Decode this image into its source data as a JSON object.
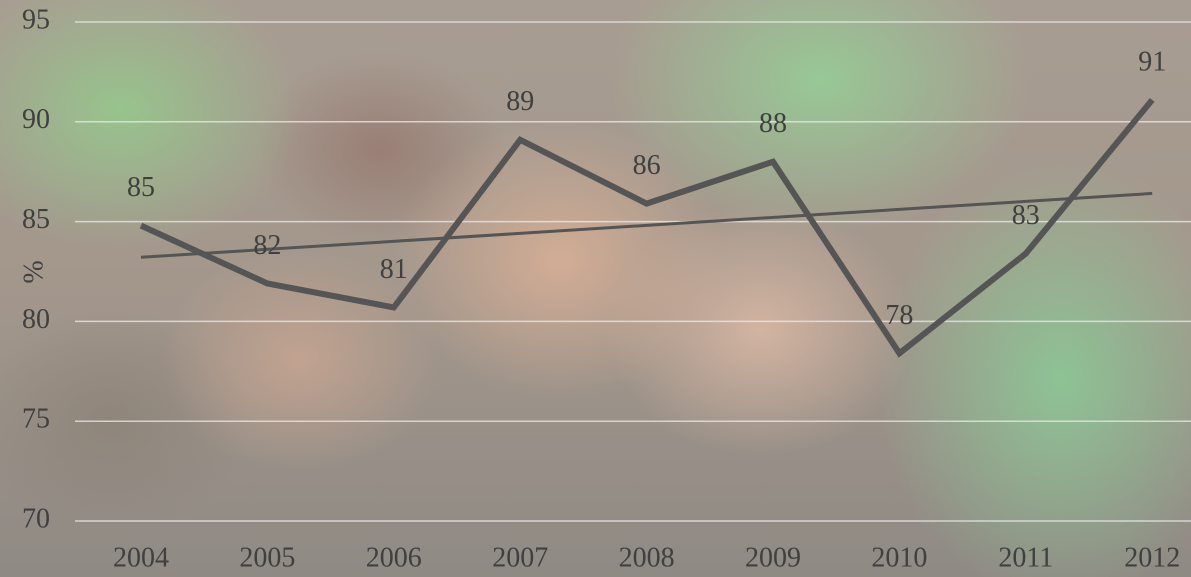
{
  "chart_data": {
    "type": "line",
    "y_label": "%",
    "categories": [
      "2004",
      "2005",
      "2006",
      "2007",
      "2008",
      "2009",
      "2010",
      "2011",
      "2012"
    ],
    "values": [
      84.8,
      81.9,
      80.7,
      89.1,
      85.9,
      88.0,
      78.4,
      83.4,
      91.1
    ],
    "value_labels": [
      "85",
      "82",
      "81",
      "89",
      "86",
      "88",
      "78",
      "83",
      "91"
    ],
    "color": "#555555",
    "ylim": [
      70,
      95
    ],
    "yticks": [
      70,
      75,
      80,
      85,
      90,
      95
    ],
    "grid": true,
    "trendline": true
  }
}
